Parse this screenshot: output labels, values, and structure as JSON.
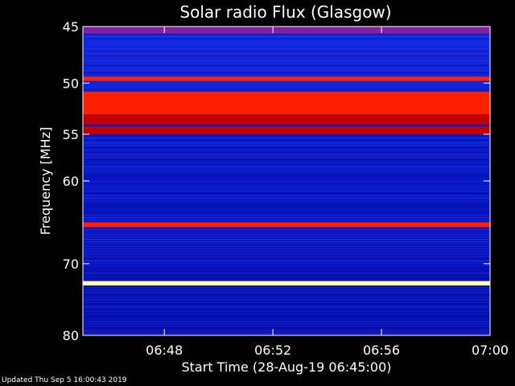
{
  "footer": {
    "updated": "Updated Thu Sep  5 16:00:43 2019"
  },
  "chart_data": {
    "type": "heatmap",
    "title": "Solar radio Flux (Glasgow)",
    "xlabel": "Start Time (28-Aug-19 06:45:00)",
    "ylabel": "Frequency [MHz]",
    "x_ticks": [
      "06:48",
      "06:52",
      "06:56",
      "07:00"
    ],
    "x_tick_minutes": [
      3,
      7,
      11,
      15
    ],
    "xlim_minutes": [
      0,
      15
    ],
    "y_ticks": [
      45,
      50,
      55,
      60,
      70,
      80
    ],
    "ylim_mhz": [
      45,
      80
    ],
    "y_scale": "log",
    "colorscale": [
      "#000060",
      "#0010d0",
      "#2040ff",
      "#8020a0",
      "#c00000",
      "#ff2000",
      "#ffff60",
      "#ffffff"
    ],
    "bands": [
      {
        "mhz_from": 45.0,
        "mhz_to": 45.6,
        "level": 3
      },
      {
        "mhz_from": 49.4,
        "mhz_to": 49.8,
        "level": 5
      },
      {
        "mhz_from": 50.8,
        "mhz_to": 53.0,
        "level": 5
      },
      {
        "mhz_from": 53.0,
        "mhz_to": 54.0,
        "level": 4
      },
      {
        "mhz_from": 54.2,
        "mhz_to": 55.0,
        "level": 4
      },
      {
        "mhz_from": 64.8,
        "mhz_to": 65.4,
        "level": 5
      },
      {
        "mhz_from": 72.3,
        "mhz_to": 72.9,
        "level": 6
      }
    ]
  }
}
